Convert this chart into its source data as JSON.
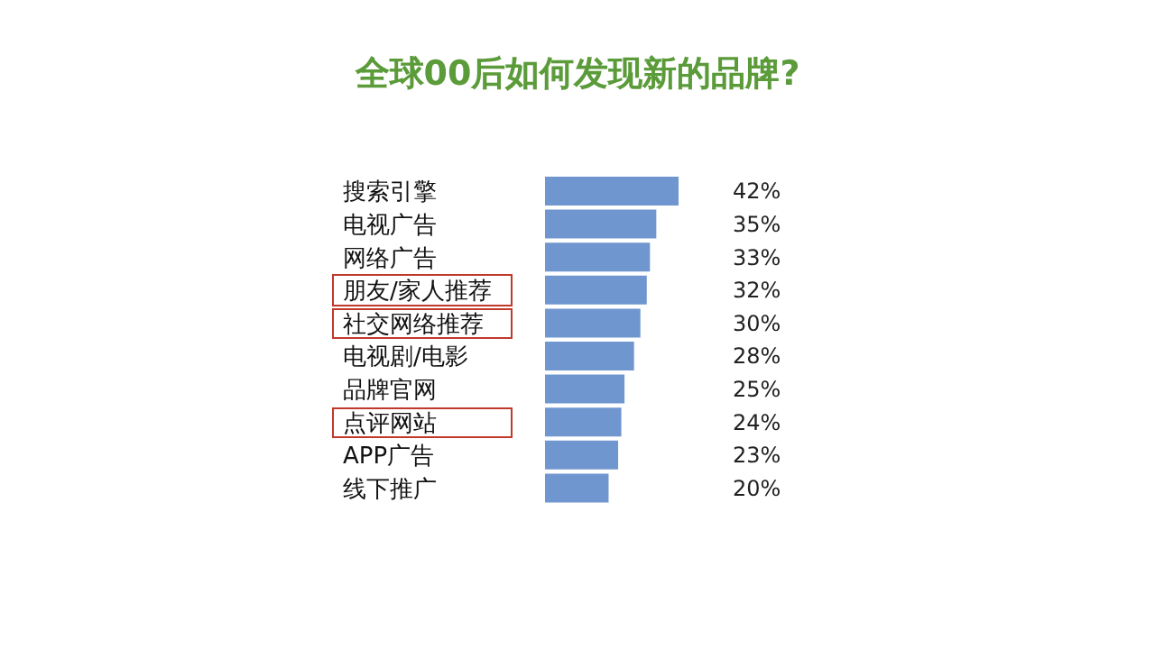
{
  "chart_data": {
    "type": "bar",
    "orientation": "horizontal",
    "title": "全球00后如何发现新的品牌?",
    "categories": [
      "搜索引擎",
      "电视广告",
      "网络广告",
      "朋友/家人推荐",
      "社交网络推荐",
      "电视剧/电影",
      "品牌官网",
      "点评网站",
      "APP广告",
      "线下推广"
    ],
    "values": [
      42,
      35,
      33,
      32,
      30,
      28,
      25,
      24,
      23,
      20
    ],
    "value_labels": [
      "42%",
      "35%",
      "33%",
      "32%",
      "30%",
      "28%",
      "25%",
      "24%",
      "23%",
      "20%"
    ],
    "color": "#7096cf"
  }
}
